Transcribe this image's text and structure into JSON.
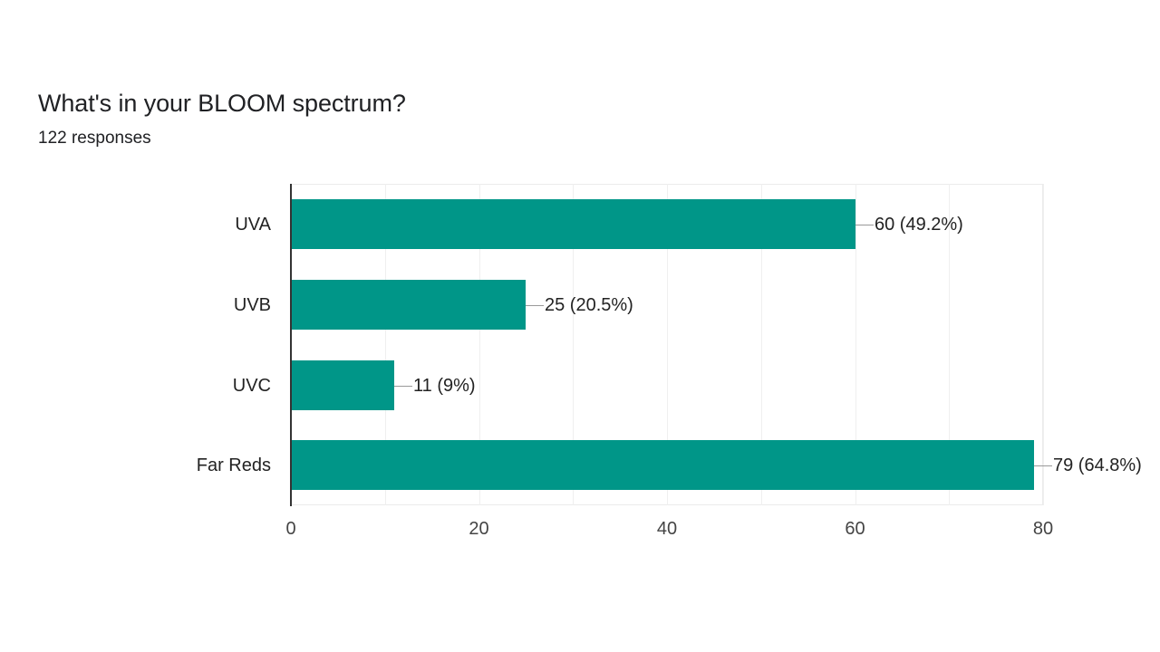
{
  "header": {
    "title": "What's in your BLOOM spectrum?",
    "responses": "122 responses"
  },
  "colors": {
    "bar": "#009688",
    "axis": "#333333",
    "grid": "#efefef",
    "text": "#222222"
  },
  "chart_data": {
    "type": "bar",
    "orientation": "horizontal",
    "title": "What's in your BLOOM spectrum?",
    "subtitle": "122 responses",
    "categories": [
      "UVA",
      "UVB",
      "UVC",
      "Far Reds"
    ],
    "values": [
      60,
      25,
      11,
      79
    ],
    "percentages": [
      "49.2%",
      "20.5%",
      "9%",
      "64.8%"
    ],
    "data_labels": [
      "60 (49.2%)",
      "25 (20.5%)",
      "11 (9%)",
      "79 (64.8%)"
    ],
    "xlabel": "",
    "ylabel": "",
    "xlim": [
      0,
      80
    ],
    "x_ticks": [
      "0",
      "20",
      "40",
      "60",
      "80"
    ],
    "grid": true,
    "grid_step": 10,
    "legend": "none"
  }
}
